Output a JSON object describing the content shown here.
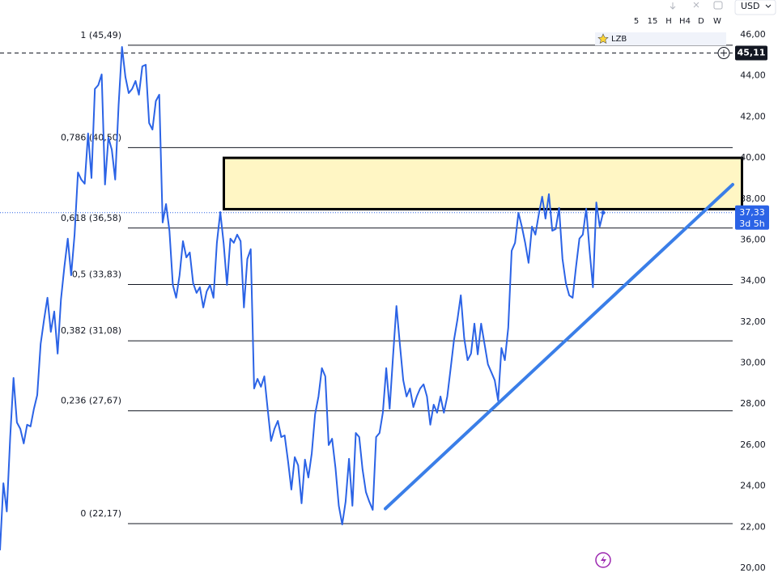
{
  "toolbar": {
    "intervals": [
      "5",
      "15",
      "H",
      "H4",
      "D",
      "W"
    ],
    "currency": "USD",
    "symbol": "LZB"
  },
  "chart_data": {
    "type": "line",
    "series": [
      {
        "color": "#2b63e6",
        "values": [
          20.87,
          24.14,
          22.76,
          26.39,
          29.27,
          27.1,
          26.79,
          26.08,
          26.99,
          26.91,
          27.77,
          28.44,
          30.93,
          32.11,
          33.18,
          31.52,
          32.51,
          30.46,
          33.1,
          34.68,
          36.06,
          34.28,
          36.26,
          39.29,
          38.94,
          38.74,
          41.19,
          39.02,
          43.36,
          43.55,
          44.07,
          38.7,
          40.99,
          40.4,
          38.94,
          42.57,
          45.41,
          43.95,
          43.16,
          43.36,
          43.75,
          43.08,
          44.46,
          44.54,
          41.7,
          41.38,
          42.77,
          43.08,
          36.85,
          37.75,
          36.45,
          33.81,
          33.18,
          34.28,
          35.94,
          35.15,
          35.39,
          33.89,
          33.42,
          33.69,
          32.71,
          33.49,
          33.81,
          33.18,
          35.86,
          37.36,
          35.86,
          33.81,
          36.06,
          35.86,
          36.26,
          35.94,
          32.71,
          35.07,
          35.55,
          28.76,
          29.23,
          28.84,
          29.35,
          27.77,
          26.2,
          26.79,
          27.18,
          26.39,
          26.47,
          25.21,
          23.83,
          25.41,
          25.01,
          23.16,
          25.29,
          24.42,
          25.6,
          27.5,
          28.37,
          29.75,
          29.35,
          26,
          26.31,
          24.89,
          23.04,
          22.13,
          23.24,
          25.33,
          23.04,
          26.59,
          26.39,
          24.82,
          23.71,
          23.24,
          22.84,
          26.39,
          26.59,
          27.58,
          29.75,
          27.77,
          30.34,
          32.78,
          30.93,
          29.16,
          28.37,
          28.76,
          27.85,
          28.37,
          28.76,
          28.96,
          28.37,
          26.99,
          27.97,
          27.58,
          28.37,
          27.58,
          28.37,
          29.75,
          31.13,
          32.11,
          33.3,
          31.21,
          30.14,
          30.46,
          31.92,
          30.42,
          31.92,
          30.93,
          29.94,
          29.55,
          29.16,
          28.17,
          30.73,
          30.14,
          31.72,
          35.47,
          35.86,
          37.32,
          36.65,
          35.86,
          34.88,
          36.65,
          36.26,
          37.24,
          38.11,
          37.04,
          38.23,
          36.45,
          36.53,
          37.56,
          35.07,
          33.89,
          33.3,
          33.18,
          34.68,
          36.06,
          36.26,
          37.52,
          35.47,
          33.69,
          37.83,
          36.65,
          37.33
        ]
      }
    ],
    "ylim": [
      20,
      46
    ],
    "yticks": [
      {
        "value": 20,
        "label": "20,00"
      },
      {
        "value": 22,
        "label": "22,00"
      },
      {
        "value": 24,
        "label": "24,00"
      },
      {
        "value": 26,
        "label": "26,00"
      },
      {
        "value": 28,
        "label": "28,00"
      },
      {
        "value": 30,
        "label": "30,00"
      },
      {
        "value": 32,
        "label": "32,00"
      },
      {
        "value": 34,
        "label": "34,00"
      },
      {
        "value": 36,
        "label": "36,00"
      },
      {
        "value": 38,
        "label": "38,00"
      },
      {
        "value": 40,
        "label": "40,00"
      },
      {
        "value": 42,
        "label": "42,00"
      },
      {
        "value": 44,
        "label": "44,00"
      },
      {
        "value": 46,
        "label": "46,00"
      }
    ],
    "levels": [
      {
        "value": 45.49,
        "label": "1 (45,49)"
      },
      {
        "value": 40.5,
        "label": "0,786 (40,50)"
      },
      {
        "value": 36.58,
        "label": "0,618 (36,58)"
      },
      {
        "value": 33.83,
        "label": "0,5 (33,83)"
      },
      {
        "value": 31.08,
        "label": "0,382 (31,08)"
      },
      {
        "value": 27.67,
        "label": "0,236 (27,67)"
      },
      {
        "value": 22.17,
        "label": "0 (22,17)"
      }
    ],
    "zone": {
      "from": 37.5,
      "to": 40
    },
    "trendline": {
      "start": 22.9,
      "end": 38.7
    },
    "marker_price": {
      "value": 45.11,
      "label": "45,11"
    },
    "last_price": {
      "value": 37.33,
      "label": "37,33"
    },
    "countdown": "3d 5h"
  }
}
